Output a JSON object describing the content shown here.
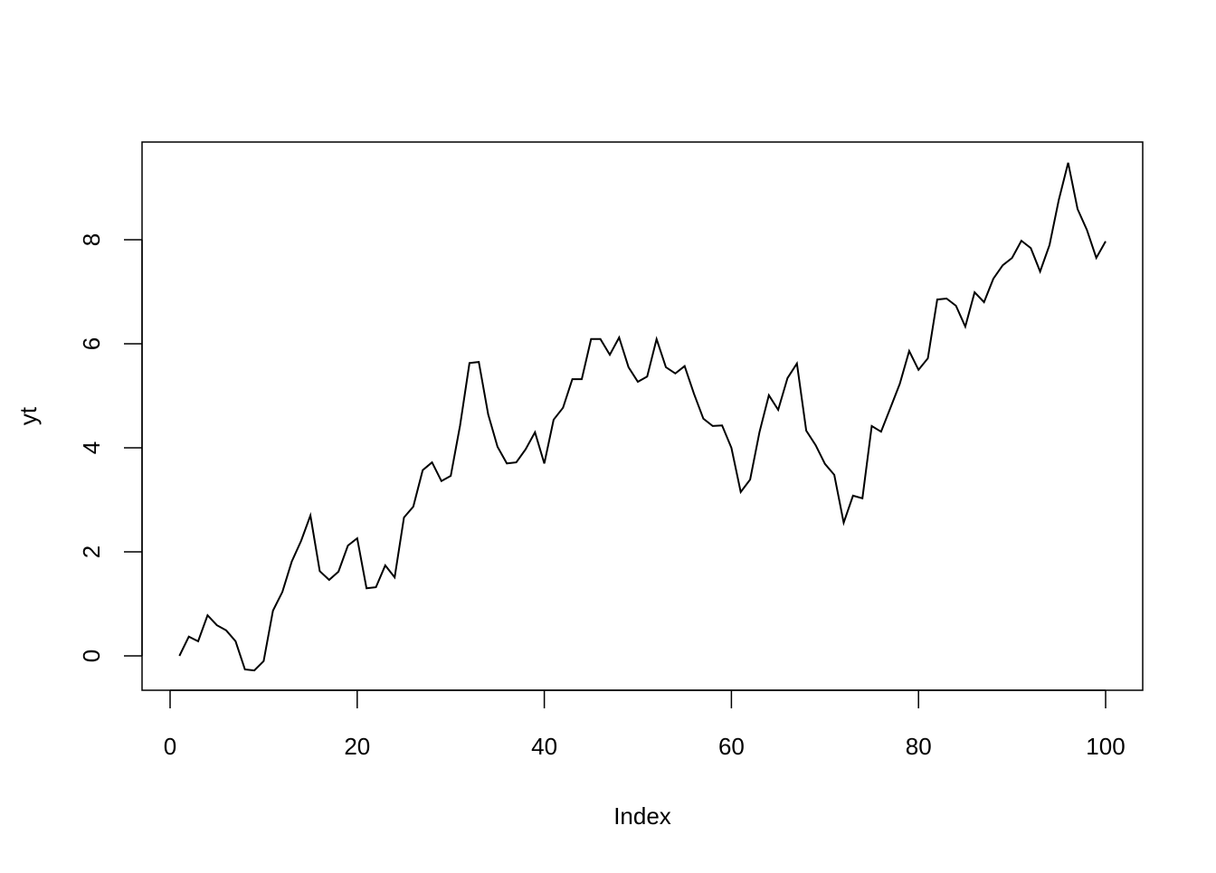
{
  "chart_data": {
    "type": "line",
    "title": "",
    "xlabel": "Index",
    "ylabel": "yt",
    "xlim": [
      0,
      100
    ],
    "ylim": [
      -0.65,
      9.9
    ],
    "xticks": [
      0,
      20,
      40,
      60,
      80,
      100
    ],
    "yticks": [
      0,
      2,
      4,
      6,
      8
    ],
    "grid": false,
    "line_color": "#000000",
    "x": [
      1,
      2,
      3,
      4,
      5,
      6,
      7,
      8,
      9,
      10,
      11,
      12,
      13,
      14,
      15,
      16,
      17,
      18,
      19,
      20,
      21,
      22,
      23,
      24,
      25,
      26,
      27,
      28,
      29,
      30,
      31,
      32,
      33,
      34,
      35,
      36,
      37,
      38,
      39,
      40,
      41,
      42,
      43,
      44,
      45,
      46,
      47,
      48,
      49,
      50,
      51,
      52,
      53,
      54,
      55,
      56,
      57,
      58,
      59,
      60,
      61,
      62,
      63,
      64,
      65,
      66,
      67,
      68,
      69,
      70,
      71,
      72,
      73,
      74,
      75,
      76,
      77,
      78,
      79,
      80,
      81,
      82,
      83,
      84,
      85,
      86,
      87,
      88,
      89,
      90,
      91,
      92,
      93,
      94,
      95,
      96,
      97,
      98,
      99,
      100
    ],
    "values": [
      0,
      0.37,
      0.28,
      0.78,
      0.59,
      0.49,
      0.28,
      -0.26,
      -0.28,
      -0.1,
      0.87,
      1.23,
      1.81,
      2.21,
      2.7,
      1.63,
      1.46,
      1.62,
      2.12,
      2.26,
      1.3,
      1.32,
      1.74,
      1.51,
      2.66,
      2.87,
      3.57,
      3.72,
      3.36,
      3.46,
      4.43,
      5.63,
      5.65,
      4.64,
      4.02,
      3.7,
      3.72,
      3.97,
      4.3,
      3.7,
      4.54,
      4.77,
      5.32,
      5.32,
      6.09,
      6.09,
      5.79,
      6.12,
      5.55,
      5.27,
      5.37,
      6.09,
      5.55,
      5.43,
      5.57,
      5.04,
      4.56,
      4.42,
      4.43,
      4.0,
      3.15,
      3.39,
      4.3,
      5.01,
      4.73,
      5.34,
      5.62,
      4.33,
      4.05,
      3.69,
      3.48,
      2.56,
      3.08,
      3.03,
      4.42,
      4.31,
      4.77,
      5.23,
      5.86,
      5.5,
      5.72,
      6.85,
      6.87,
      6.73,
      6.33,
      6.99,
      6.8,
      7.25,
      7.51,
      7.65,
      7.98,
      7.84,
      7.39,
      7.9,
      8.77,
      9.48,
      8.59,
      8.19,
      7.65,
      7.97
    ]
  }
}
